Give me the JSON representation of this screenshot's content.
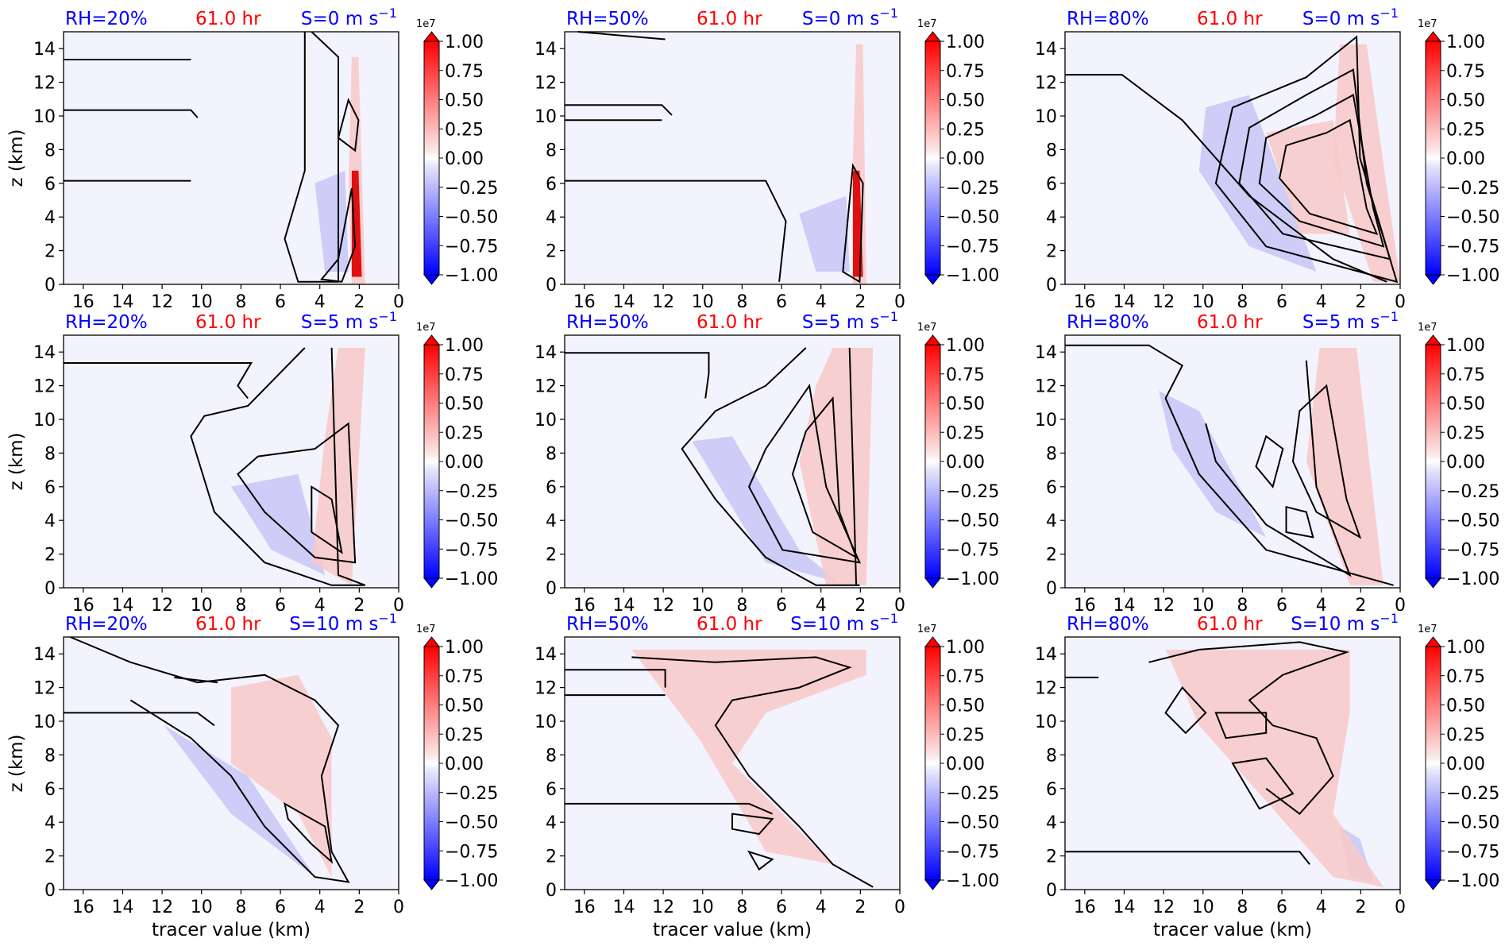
{
  "colors": {
    "rh_label": "#0000ff",
    "time_label": "#ff0000",
    "shear_label": "#0000ff",
    "background_field": "#f3f3fd",
    "positive": "#ff0000",
    "negative": "#0000ff",
    "contour": "#000000"
  },
  "colorbar": {
    "exponent_label": "1e7",
    "ticks": [
      "1.00",
      "0.75",
      "0.50",
      "0.25",
      "0.00",
      "−0.25",
      "−0.50",
      "−0.75",
      "−1.00"
    ],
    "tick_values": [
      1.0,
      0.75,
      0.5,
      0.25,
      0.0,
      -0.25,
      -0.5,
      -0.75,
      -1.0
    ],
    "range": [
      -1.0,
      1.0
    ],
    "extend": "both",
    "colormap": "bwr"
  },
  "axes_common": {
    "xlabel": "tracer value (km)",
    "ylabel": "z (km)",
    "xlim": [
      17,
      0
    ],
    "ylim": [
      0,
      15
    ],
    "xticks": [
      "16",
      "14",
      "12",
      "10",
      "8",
      "6",
      "4",
      "2",
      "0"
    ],
    "xtick_values": [
      16,
      14,
      12,
      10,
      8,
      6,
      4,
      2,
      0
    ],
    "yticks": [
      "0",
      "2",
      "4",
      "6",
      "8",
      "10",
      "12",
      "14"
    ],
    "ytick_values": [
      0,
      2,
      4,
      6,
      8,
      10,
      12,
      14
    ]
  },
  "chart_data": [
    {
      "type": "heatmap",
      "rh": "RH=20%",
      "time": "61.0 hr",
      "shear": "S=0 m s",
      "shear_exp": "−1",
      "row": 0,
      "col": 0
    },
    {
      "type": "heatmap",
      "rh": "RH=50%",
      "time": "61.0 hr",
      "shear": "S=0 m s",
      "shear_exp": "−1",
      "row": 0,
      "col": 1
    },
    {
      "type": "heatmap",
      "rh": "RH=80%",
      "time": "61.0 hr",
      "shear": "S=0 m s",
      "shear_exp": "−1",
      "row": 0,
      "col": 2
    },
    {
      "type": "heatmap",
      "rh": "RH=20%",
      "time": "61.0 hr",
      "shear": "S=5 m s",
      "shear_exp": "−1",
      "row": 1,
      "col": 0
    },
    {
      "type": "heatmap",
      "rh": "RH=50%",
      "time": "61.0 hr",
      "shear": "S=5 m s",
      "shear_exp": "−1",
      "row": 1,
      "col": 1
    },
    {
      "type": "heatmap",
      "rh": "RH=80%",
      "time": "61.0 hr",
      "shear": "S=5 m s",
      "shear_exp": "−1",
      "row": 1,
      "col": 2
    },
    {
      "type": "heatmap",
      "rh": "RH=20%",
      "time": "61.0 hr",
      "shear": "S=10 m s",
      "shear_exp": "−1",
      "row": 2,
      "col": 0
    },
    {
      "type": "heatmap",
      "rh": "RH=50%",
      "time": "61.0 hr",
      "shear": "S=10 m s",
      "shear_exp": "−1",
      "row": 2,
      "col": 1
    },
    {
      "type": "heatmap",
      "rh": "RH=80%",
      "time": "61.0 hr",
      "shear": "S=10 m s",
      "shear_exp": "−1",
      "row": 2,
      "col": 2
    }
  ]
}
